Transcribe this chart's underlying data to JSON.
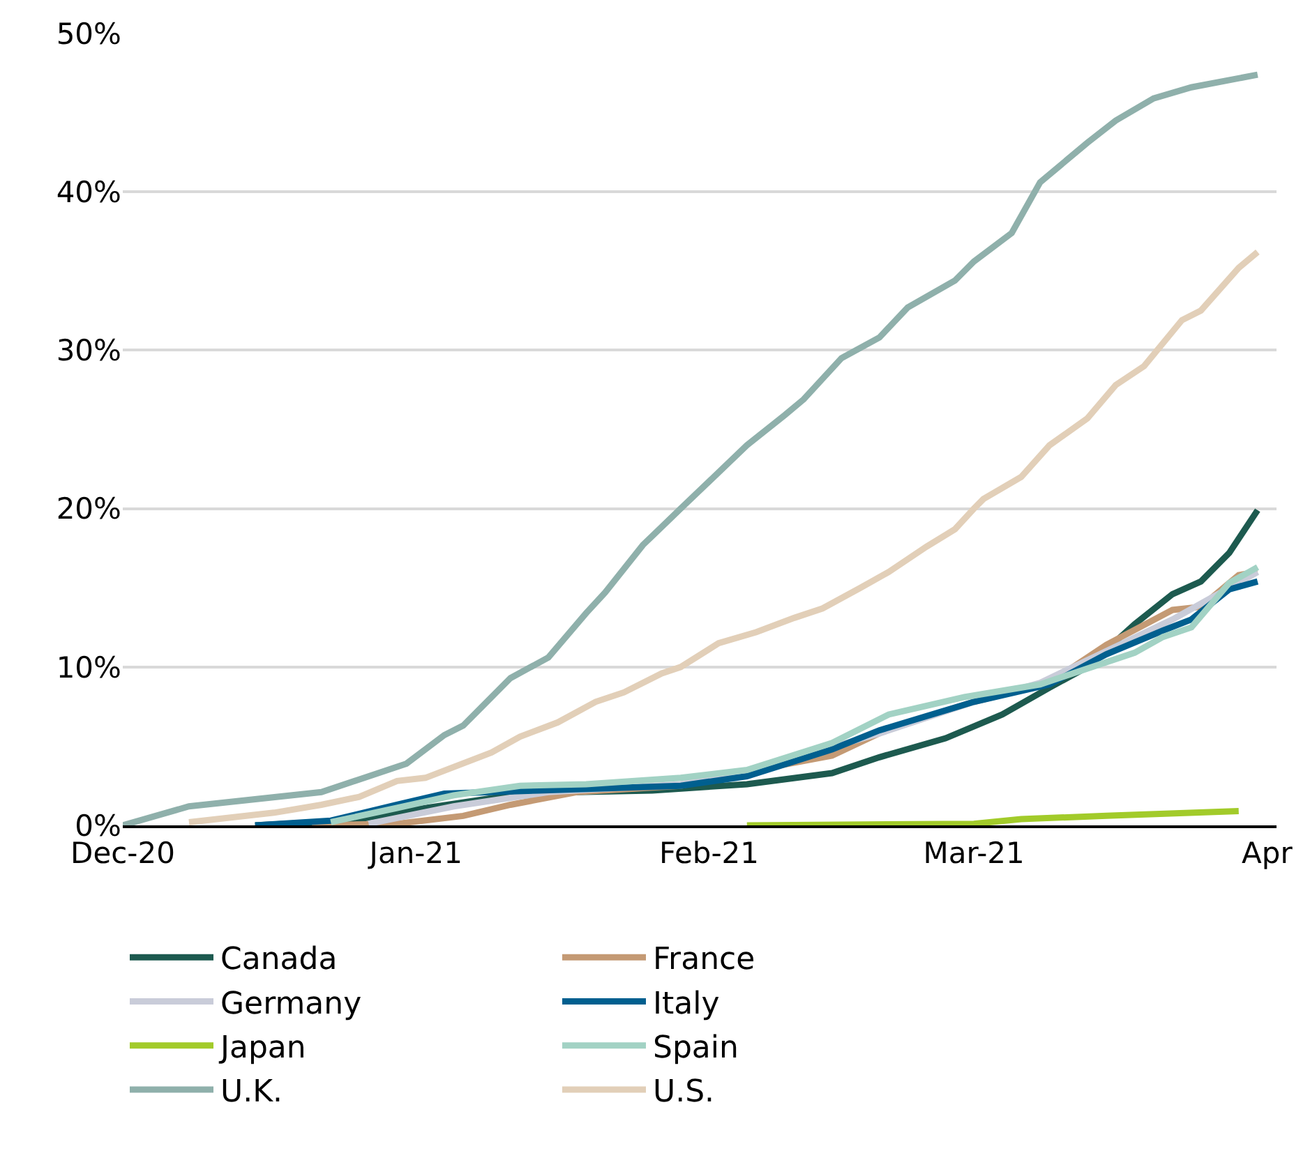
{
  "chart_data": {
    "type": "line",
    "xlim": [
      "2020-12-01",
      "2021-04-02"
    ],
    "xticks": [
      {
        "value": "2020-12-01",
        "label": "Dec-20"
      },
      {
        "value": "2021-01-01",
        "label": "Jan-21"
      },
      {
        "value": "2021-02-01",
        "label": "Feb-21"
      },
      {
        "value": "2021-03-01",
        "label": "Mar-21"
      },
      {
        "value": "2021-04-01",
        "label": "Apr"
      }
    ],
    "ylim": [
      0,
      50
    ],
    "yticks": [
      {
        "value": 0,
        "label": "0%"
      },
      {
        "value": 10,
        "label": "10%"
      },
      {
        "value": 20,
        "label": "20%"
      },
      {
        "value": 30,
        "label": "30%"
      },
      {
        "value": 40,
        "label": "40%"
      },
      {
        "value": 50,
        "label": "50%"
      }
    ],
    "grid": "y",
    "legend": "bottom",
    "marker": "none",
    "line_style": "solid",
    "series": [
      {
        "name": "Canada",
        "color": "#1d5a4f",
        "x": [
          "2020-12-15",
          "2020-12-25",
          "2021-01-01",
          "2021-01-10",
          "2021-01-18",
          "2021-01-26",
          "2021-02-05",
          "2021-02-14",
          "2021-02-19",
          "2021-02-26",
          "2021-03-04",
          "2021-03-09",
          "2021-03-13",
          "2021-03-18",
          "2021-03-22",
          "2021-03-25",
          "2021-03-28",
          "2021-03-31"
        ],
        "values": [
          0.0,
          0.3,
          1.0,
          1.8,
          2.1,
          2.2,
          2.6,
          3.3,
          4.3,
          5.5,
          7.0,
          8.7,
          10.0,
          12.7,
          14.6,
          15.4,
          17.2,
          19.9
        ]
      },
      {
        "name": "France",
        "color": "#c49a74",
        "x": [
          "2020-12-21",
          "2020-12-30",
          "2021-01-06",
          "2021-01-11",
          "2021-01-18",
          "2021-01-29",
          "2021-02-05",
          "2021-02-14",
          "2021-02-20",
          "2021-03-01",
          "2021-03-09",
          "2021-03-15",
          "2021-03-22",
          "2021-03-25",
          "2021-03-29",
          "2021-03-31"
        ],
        "values": [
          0.0,
          0.1,
          0.6,
          1.3,
          2.1,
          2.5,
          3.4,
          4.4,
          6.1,
          7.8,
          9.0,
          11.4,
          13.6,
          13.8,
          15.8,
          16.0
        ]
      },
      {
        "name": "Germany",
        "color": "#c9ccd9",
        "x": [
          "2020-12-27",
          "2021-01-05",
          "2021-01-15",
          "2021-01-29",
          "2021-02-05",
          "2021-02-19",
          "2021-03-01",
          "2021-03-08",
          "2021-03-15",
          "2021-03-22",
          "2021-03-28",
          "2021-03-31"
        ],
        "values": [
          0.1,
          1.2,
          2.1,
          2.6,
          3.4,
          5.8,
          7.8,
          9.0,
          11.0,
          13.0,
          15.0,
          16.0
        ]
      },
      {
        "name": "Italy",
        "color": "#005f8f",
        "x": [
          "2020-12-15",
          "2020-12-23",
          "2020-12-30",
          "2021-01-04",
          "2021-01-14",
          "2021-01-29",
          "2021-02-05",
          "2021-02-14",
          "2021-02-19",
          "2021-03-01",
          "2021-03-09",
          "2021-03-15",
          "2021-03-21",
          "2021-03-24",
          "2021-03-28",
          "2021-03-31"
        ],
        "values": [
          0.0,
          0.3,
          1.3,
          2.0,
          2.2,
          2.5,
          3.1,
          4.8,
          6.0,
          7.8,
          8.9,
          10.8,
          12.3,
          13.0,
          14.9,
          15.4
        ]
      },
      {
        "name": "Japan",
        "color": "#a2cb2a",
        "x": [
          "2021-02-05",
          "2021-03-01",
          "2021-03-06",
          "2021-03-15",
          "2021-03-29"
        ],
        "values": [
          0.0,
          0.1,
          0.4,
          0.6,
          0.9
        ]
      },
      {
        "name": "Spain",
        "color": "#a2d2c4",
        "x": [
          "2020-12-23",
          "2020-12-30",
          "2021-01-05",
          "2021-01-12",
          "2021-01-19",
          "2021-01-29",
          "2021-02-05",
          "2021-02-14",
          "2021-02-20",
          "2021-02-28",
          "2021-03-08",
          "2021-03-18",
          "2021-03-21",
          "2021-03-24",
          "2021-03-28",
          "2021-03-31"
        ],
        "values": [
          0.2,
          1.1,
          1.9,
          2.5,
          2.6,
          3.0,
          3.5,
          5.2,
          7.0,
          8.1,
          8.9,
          10.9,
          11.9,
          12.5,
          15.3,
          16.3
        ]
      },
      {
        "name": "U.K.",
        "color": "#8fb0ab",
        "x": [
          "2020-12-01",
          "2020-12-08",
          "2020-12-22",
          "2020-12-31",
          "2021-01-04",
          "2021-01-06",
          "2021-01-11",
          "2021-01-15",
          "2021-01-19",
          "2021-01-21",
          "2021-01-25",
          "2021-01-29",
          "2021-02-05",
          "2021-02-09",
          "2021-02-11",
          "2021-02-15",
          "2021-02-19",
          "2021-02-22",
          "2021-02-27",
          "2021-03-01",
          "2021-03-05",
          "2021-03-08",
          "2021-03-13",
          "2021-03-16",
          "2021-03-20",
          "2021-03-24",
          "2021-03-31"
        ],
        "values": [
          0.0,
          1.2,
          2.1,
          3.9,
          5.7,
          6.3,
          9.3,
          10.6,
          13.4,
          14.7,
          17.7,
          20.0,
          24.0,
          25.9,
          26.9,
          29.5,
          30.8,
          32.7,
          34.4,
          35.6,
          37.4,
          40.6,
          43.1,
          44.5,
          45.9,
          46.6,
          47.4
        ]
      },
      {
        "name": "U.S.",
        "color": "#e2cfb8",
        "x": [
          "2020-12-08",
          "2020-12-17",
          "2020-12-22",
          "2020-12-26",
          "2020-12-30",
          "2021-01-02",
          "2021-01-09",
          "2021-01-12",
          "2021-01-16",
          "2021-01-20",
          "2021-01-23",
          "2021-01-27",
          "2021-01-29",
          "2021-02-02",
          "2021-02-06",
          "2021-02-10",
          "2021-02-13",
          "2021-02-17",
          "2021-02-20",
          "2021-02-24",
          "2021-02-27",
          "2021-03-01",
          "2021-03-02",
          "2021-03-06",
          "2021-03-09",
          "2021-03-13",
          "2021-03-16",
          "2021-03-19",
          "2021-03-23",
          "2021-03-25",
          "2021-03-29",
          "2021-03-31"
        ],
        "values": [
          0.2,
          0.8,
          1.3,
          1.8,
          2.8,
          3.0,
          4.6,
          5.6,
          6.5,
          7.8,
          8.4,
          9.6,
          10.0,
          11.5,
          12.2,
          13.1,
          13.7,
          15.0,
          16.0,
          17.6,
          18.7,
          20.0,
          20.6,
          22.0,
          24.0,
          25.7,
          27.8,
          29.0,
          31.9,
          32.5,
          35.2,
          36.2
        ]
      }
    ]
  }
}
